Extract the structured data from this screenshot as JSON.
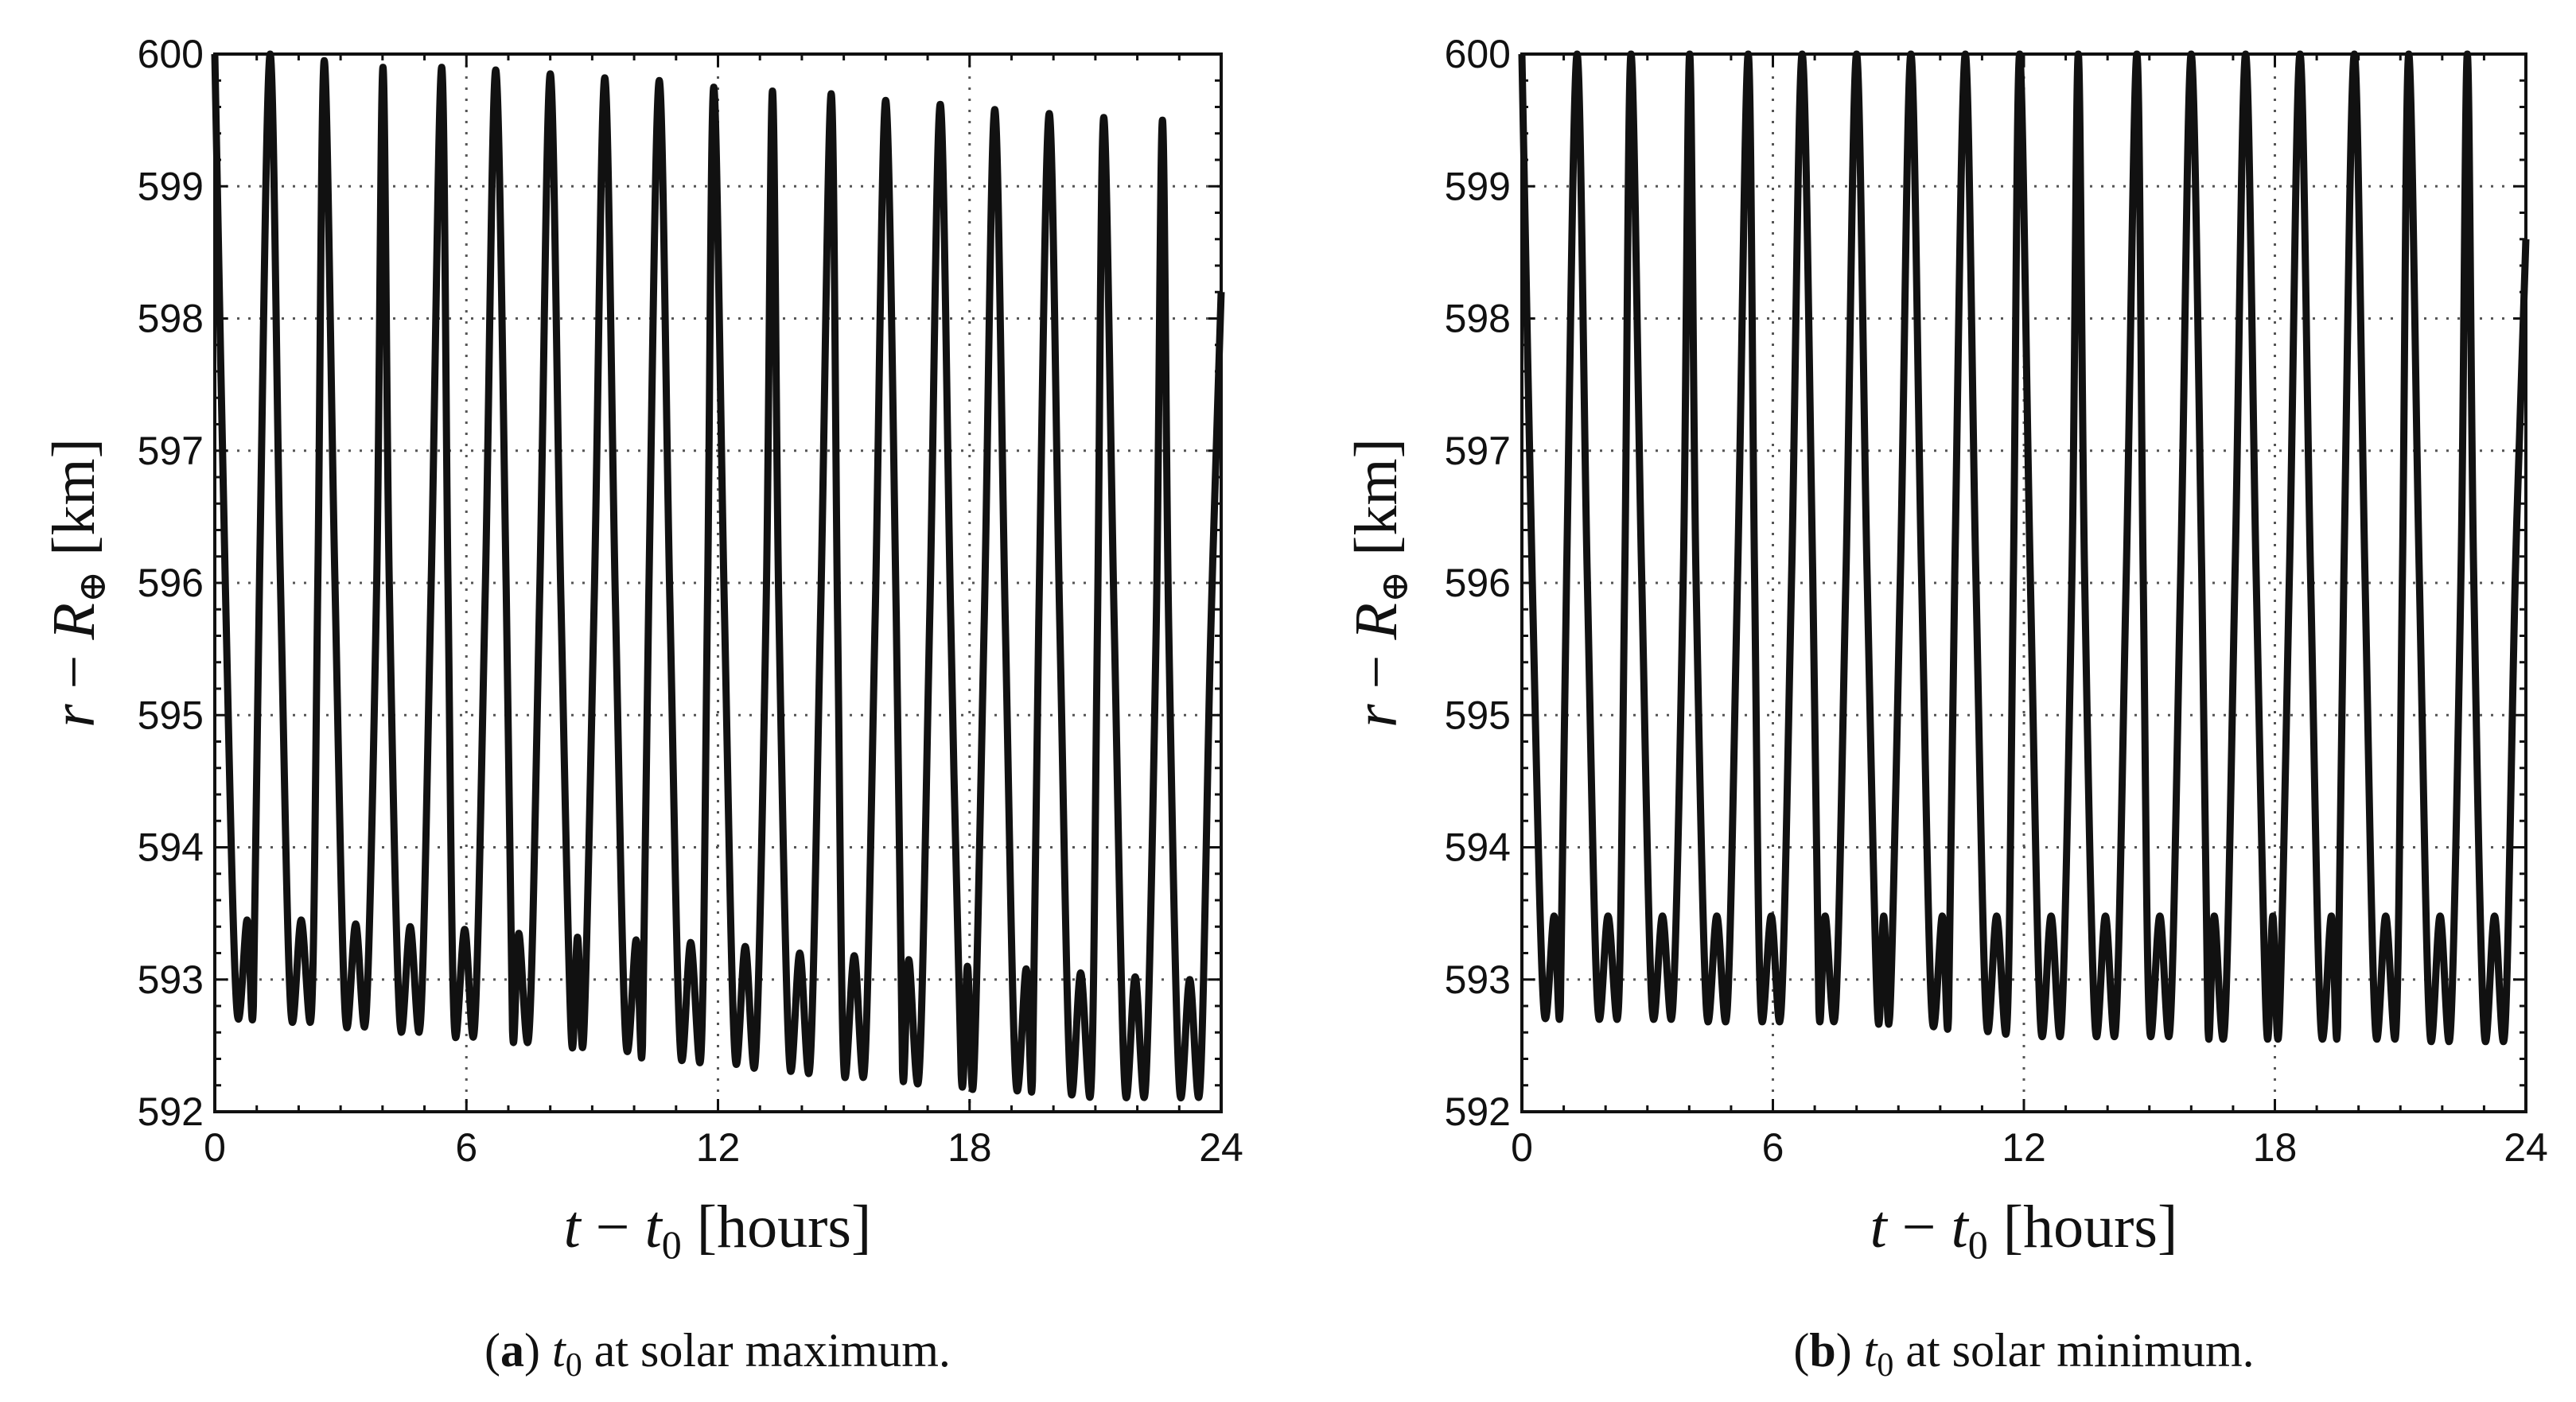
{
  "chart_data": [
    {
      "type": "line",
      "panel": "a",
      "caption_label": "a",
      "caption_subject": "t",
      "caption_subscript": "0",
      "caption_text": " at solar maximum.",
      "xlabel": {
        "a": "t",
        "op": " − ",
        "b": "t",
        "sub": "0",
        "unit": " [hours]"
      },
      "ylabel": {
        "a": "r",
        "op": " − ",
        "b": "R",
        "sub": "⊕",
        "unit": " [km]"
      },
      "xlim": [
        0,
        24
      ],
      "ylim": [
        592,
        600
      ],
      "xticks": [
        0,
        6,
        12,
        18,
        24
      ],
      "yticks": [
        592,
        593,
        594,
        595,
        596,
        597,
        598,
        599,
        600
      ],
      "xtick_labels": [
        "0",
        "6",
        "12",
        "18",
        "24"
      ],
      "ytick_labels": [
        "592",
        "593",
        "594",
        "595",
        "596",
        "597",
        "598",
        "599",
        "600"
      ],
      "grid": true,
      "series": [
        {
          "name": "r − R⊕",
          "x": [
            0,
            0.25,
            0.52,
            0.77,
            0.92,
            1.07,
            1.32,
            1.56,
            1.81,
            2.06,
            2.31,
            2.46,
            2.61,
            2.86,
            3.11,
            3.36,
            3.61,
            3.86,
            4.01,
            4.16,
            4.41,
            4.66,
            4.91,
            5.16,
            5.41,
            5.56,
            5.71,
            5.96,
            6.2,
            6.45,
            6.7,
            6.95,
            7.1,
            7.25,
            7.5,
            7.75,
            8.0,
            8.25,
            8.5,
            8.65,
            8.8,
            9.05,
            9.3,
            9.55,
            9.8,
            10.05,
            10.2,
            10.35,
            10.6,
            10.85,
            11.1,
            11.35,
            11.6,
            11.75,
            11.9,
            12.15,
            12.4,
            12.65,
            12.9,
            13.15,
            13.3,
            13.45,
            13.7,
            13.95,
            14.2,
            14.45,
            14.7,
            14.85,
            15.0,
            15.25,
            15.5,
            15.75,
            16.0,
            16.25,
            16.4,
            16.55,
            16.8,
            17.05,
            17.3,
            17.55,
            17.8,
            17.95,
            18.1,
            18.35,
            18.6,
            18.85,
            19.1,
            19.35,
            19.5,
            19.65,
            19.9,
            20.15,
            20.4,
            20.65,
            20.9,
            21.05,
            21.2,
            21.45,
            21.7,
            21.95,
            22.2,
            22.45,
            22.6,
            22.75,
            23.0,
            23.25,
            23.5,
            23.75,
            24.0
          ],
          "y": [
            600.0,
            596.0,
            592.8,
            593.45,
            592.8,
            596.1,
            600.0,
            596.1,
            592.78,
            593.45,
            592.78,
            596.1,
            599.95,
            596.1,
            592.74,
            593.42,
            592.74,
            596.0,
            599.9,
            596.0,
            592.7,
            593.4,
            592.7,
            596.0,
            599.9,
            596.0,
            592.66,
            593.38,
            592.66,
            595.95,
            599.88,
            595.95,
            592.62,
            593.35,
            592.62,
            595.95,
            599.85,
            595.95,
            592.58,
            593.32,
            592.58,
            595.9,
            599.82,
            595.9,
            592.55,
            593.3,
            592.5,
            595.9,
            599.8,
            595.9,
            592.48,
            593.28,
            592.46,
            595.85,
            599.75,
            595.85,
            592.45,
            593.25,
            592.42,
            595.85,
            599.72,
            595.85,
            592.4,
            593.2,
            592.38,
            595.8,
            599.7,
            595.8,
            592.35,
            593.18,
            592.35,
            595.78,
            599.65,
            595.78,
            592.32,
            593.15,
            592.3,
            595.75,
            599.62,
            595.75,
            592.28,
            593.1,
            592.26,
            595.72,
            599.58,
            595.72,
            592.25,
            593.08,
            592.24,
            595.7,
            599.55,
            595.7,
            592.22,
            593.05,
            592.2,
            595.68,
            599.52,
            595.68,
            592.2,
            593.02,
            592.2,
            595.65,
            599.5,
            595.65,
            592.2,
            593.0,
            592.2,
            595.6,
            598.2
          ]
        }
      ]
    },
    {
      "type": "line",
      "panel": "b",
      "caption_label": "b",
      "caption_subject": "t",
      "caption_subscript": "0",
      "caption_text": " at solar minimum.",
      "xlabel": {
        "a": "t",
        "op": " − ",
        "b": "t",
        "sub": "0",
        "unit": " [hours]"
      },
      "ylabel": {
        "a": "r",
        "op": " − ",
        "b": "R",
        "sub": "⊕",
        "unit": " [km]"
      },
      "xlim": [
        0,
        24
      ],
      "ylim": [
        592,
        600
      ],
      "xticks": [
        0,
        6,
        12,
        18,
        24
      ],
      "yticks": [
        592,
        593,
        594,
        595,
        596,
        597,
        598,
        599,
        600
      ],
      "xtick_labels": [
        "0",
        "6",
        "12",
        "18",
        "24"
      ],
      "ytick_labels": [
        "592",
        "593",
        "594",
        "595",
        "596",
        "597",
        "598",
        "599",
        "600"
      ],
      "grid": true,
      "series": [
        {
          "name": "r − R⊕",
          "x": [
            0,
            0.25,
            0.52,
            0.77,
            0.92,
            1.07,
            1.32,
            1.56,
            1.81,
            2.06,
            2.31,
            2.46,
            2.61,
            2.86,
            3.11,
            3.36,
            3.61,
            3.86,
            4.01,
            4.16,
            4.41,
            4.66,
            4.91,
            5.16,
            5.41,
            5.56,
            5.71,
            5.96,
            6.2,
            6.45,
            6.7,
            6.95,
            7.1,
            7.25,
            7.5,
            7.75,
            8.0,
            8.25,
            8.5,
            8.65,
            8.8,
            9.05,
            9.3,
            9.55,
            9.8,
            10.05,
            10.2,
            10.35,
            10.6,
            10.85,
            11.1,
            11.35,
            11.6,
            11.75,
            11.9,
            12.15,
            12.4,
            12.65,
            12.9,
            13.15,
            13.3,
            13.45,
            13.7,
            13.95,
            14.2,
            14.45,
            14.7,
            14.85,
            15.0,
            15.25,
            15.5,
            15.75,
            16.0,
            16.25,
            16.4,
            16.55,
            16.8,
            17.05,
            17.3,
            17.55,
            17.8,
            17.95,
            18.1,
            18.35,
            18.6,
            18.85,
            19.1,
            19.35,
            19.5,
            19.65,
            19.9,
            20.15,
            20.4,
            20.65,
            20.9,
            21.05,
            21.2,
            21.45,
            21.7,
            21.95,
            22.2,
            22.45,
            22.6,
            22.75,
            23.0,
            23.25,
            23.5,
            23.75,
            24.0
          ],
          "y": [
            600.0,
            596.0,
            592.8,
            593.48,
            592.8,
            596.1,
            600.0,
            596.1,
            592.8,
            593.48,
            592.8,
            596.1,
            600.0,
            596.1,
            592.8,
            593.48,
            592.8,
            596.1,
            600.0,
            596.1,
            592.78,
            593.48,
            592.78,
            596.1,
            600.0,
            596.1,
            592.78,
            593.48,
            592.78,
            596.1,
            600.0,
            596.1,
            592.78,
            593.48,
            592.78,
            596.1,
            600.0,
            596.1,
            592.76,
            593.48,
            592.76,
            596.1,
            600.0,
            596.1,
            592.74,
            593.48,
            592.72,
            596.1,
            600.0,
            596.1,
            592.7,
            593.48,
            592.68,
            596.1,
            600.0,
            596.1,
            592.66,
            593.48,
            592.66,
            596.1,
            600.0,
            596.1,
            592.66,
            593.48,
            592.66,
            596.1,
            600.0,
            596.1,
            592.66,
            593.48,
            592.66,
            596.1,
            600.0,
            596.1,
            592.64,
            593.48,
            592.64,
            596.1,
            600.0,
            596.1,
            592.64,
            593.48,
            592.64,
            596.1,
            600.0,
            596.1,
            592.64,
            593.48,
            592.64,
            596.1,
            600.0,
            596.1,
            592.64,
            593.48,
            592.64,
            596.1,
            600.0,
            596.1,
            592.62,
            593.48,
            592.62,
            596.1,
            600.0,
            596.1,
            592.62,
            593.48,
            592.62,
            596.1,
            598.6
          ]
        }
      ]
    }
  ]
}
